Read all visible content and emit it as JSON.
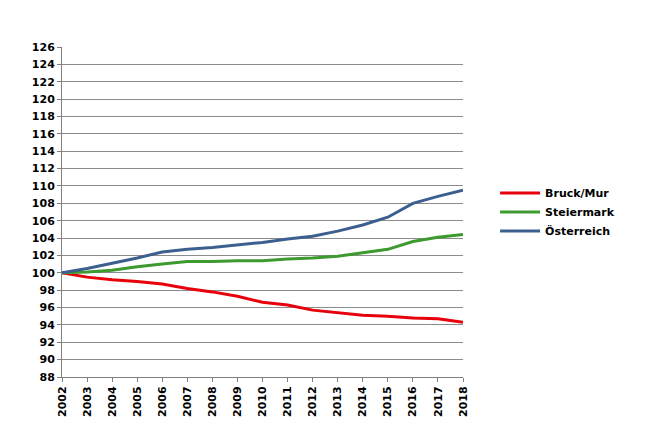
{
  "chart_data": {
    "type": "line",
    "x": [
      2002,
      2003,
      2004,
      2005,
      2006,
      2007,
      2008,
      2009,
      2010,
      2011,
      2012,
      2013,
      2014,
      2015,
      2016,
      2017,
      2018
    ],
    "series": [
      {
        "name": "Bruck/Mur",
        "color": "#e8000b",
        "values": [
          100,
          99.5,
          99.2,
          99.0,
          98.7,
          98.2,
          97.8,
          97.3,
          96.6,
          96.3,
          95.7,
          95.4,
          95.1,
          95.0,
          94.8,
          94.7,
          94.3
        ]
      },
      {
        "name": "Steiermark",
        "color": "#3c9a2e",
        "values": [
          100,
          100.1,
          100.3,
          100.7,
          101.0,
          101.3,
          101.3,
          101.4,
          101.4,
          101.6,
          101.7,
          101.9,
          102.3,
          102.7,
          103.6,
          104.1,
          104.4
        ]
      },
      {
        "name": "Österreich",
        "color": "#3d5f8f",
        "values": [
          100,
          100.5,
          101.1,
          101.7,
          102.4,
          102.7,
          102.9,
          103.2,
          103.5,
          103.9,
          104.2,
          104.8,
          105.5,
          106.4,
          108.0,
          108.8,
          109.5
        ]
      }
    ],
    "xlim": [
      2002,
      2018
    ],
    "xticks": [
      2002,
      2003,
      2004,
      2005,
      2006,
      2007,
      2008,
      2009,
      2010,
      2011,
      2012,
      2013,
      2014,
      2015,
      2016,
      2017,
      2018
    ],
    "ylim": [
      88,
      126
    ],
    "yticks": [
      88,
      90,
      92,
      94,
      96,
      98,
      100,
      102,
      104,
      106,
      108,
      110,
      112,
      114,
      116,
      118,
      120,
      122,
      124,
      126
    ],
    "grid": true,
    "legend": "right"
  }
}
